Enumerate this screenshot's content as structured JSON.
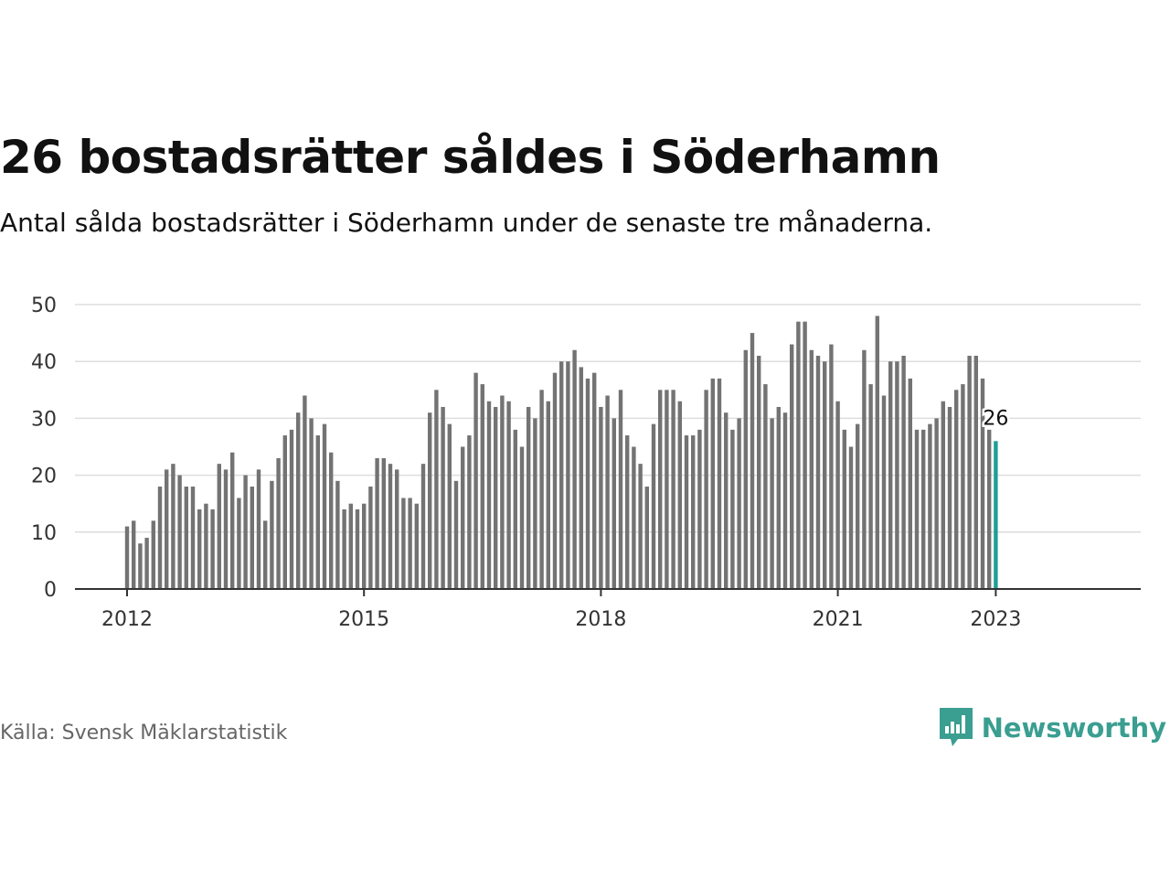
{
  "title": "26 bostadsrätter såldes i Söderhamn",
  "subtitle": "Antal sålda bostadsrätter i Söderhamn under de senaste tre månaderna.",
  "source": "Källa: Svensk Mäklarstatistik",
  "brand": {
    "name": "Newsworthy",
    "icon": "newsworthy-logo-icon",
    "color": "#3a9e91"
  },
  "colors": {
    "bar": "#737373",
    "highlight": "#1f9e96",
    "grid": "#dddddd",
    "axis": "#333333"
  },
  "chart_data": {
    "type": "bar",
    "x_start": "2012-01",
    "frequency": "monthly",
    "x_ticks": [
      "2012",
      "2015",
      "2018",
      "2021",
      "2023"
    ],
    "y_ticks": [
      0,
      10,
      20,
      30,
      40,
      50
    ],
    "ylim": [
      0,
      50
    ],
    "grid": true,
    "highlight": {
      "x": "2023-01",
      "value": 26,
      "label": "26"
    },
    "values": [
      11,
      12,
      8,
      9,
      12,
      18,
      21,
      22,
      20,
      18,
      18,
      14,
      15,
      14,
      22,
      21,
      24,
      16,
      20,
      18,
      21,
      12,
      19,
      23,
      27,
      28,
      31,
      34,
      30,
      27,
      29,
      24,
      19,
      14,
      15,
      14,
      15,
      18,
      23,
      23,
      22,
      21,
      16,
      16,
      15,
      22,
      31,
      35,
      32,
      29,
      19,
      25,
      27,
      38,
      36,
      33,
      32,
      34,
      33,
      28,
      25,
      32,
      30,
      35,
      33,
      38,
      40,
      40,
      42,
      39,
      37,
      38,
      32,
      34,
      30,
      35,
      27,
      25,
      22,
      18,
      29,
      35,
      35,
      35,
      33,
      27,
      27,
      28,
      35,
      37,
      37,
      31,
      28,
      30,
      42,
      45,
      41,
      36,
      30,
      32,
      31,
      43,
      47,
      47,
      42,
      41,
      40,
      43,
      33,
      28,
      25,
      29,
      42,
      36,
      48,
      34,
      40,
      40,
      41,
      37,
      28,
      28,
      29,
      30,
      33,
      32,
      35,
      36,
      41,
      41,
      37,
      28,
      26
    ]
  }
}
